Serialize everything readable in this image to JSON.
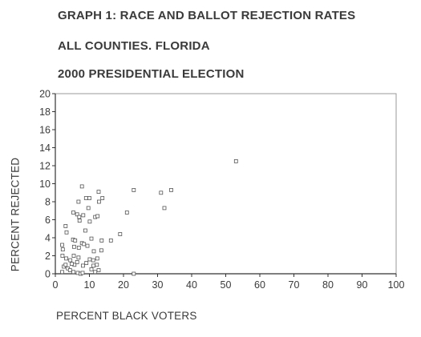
{
  "titles": {
    "line1": "GRAPH 1: RACE AND BALLOT REJECTION RATES",
    "line2": "ALL COUNTIES. FLORIDA",
    "line3": "2000 PRESIDENTIAL ELECTION"
  },
  "chart_data": {
    "type": "scatter",
    "title": "GRAPH 1: RACE AND BALLOT REJECTION RATES ALL COUNTIES. FLORIDA 2000 PRESIDENTIAL ELECTION",
    "xlabel": "PERCENT BLACK VOTERS",
    "ylabel": "PERCENT REJECTED",
    "xlim": [
      0,
      100
    ],
    "ylim": [
      0,
      20
    ],
    "xticks": [
      0,
      10,
      20,
      30,
      40,
      50,
      60,
      70,
      80,
      90,
      100
    ],
    "yticks": [
      0,
      2,
      4,
      6,
      8,
      10,
      12,
      14,
      16,
      18,
      20
    ],
    "grid": false,
    "marker": "hollow-square",
    "series": [
      {
        "points": [
          [
            53,
            12.5
          ],
          [
            23,
            9.3
          ],
          [
            31,
            9.0
          ],
          [
            34,
            9.3
          ],
          [
            32,
            7.3
          ],
          [
            21,
            6.8
          ],
          [
            19,
            4.4
          ],
          [
            23,
            0.0
          ],
          [
            7.8,
            9.7
          ],
          [
            12.7,
            9.1
          ],
          [
            13.8,
            8.4
          ],
          [
            12.8,
            8.0
          ],
          [
            6.8,
            8.0
          ],
          [
            9,
            8.4
          ],
          [
            10,
            8.4
          ],
          [
            9.7,
            7.3
          ],
          [
            5.3,
            6.8
          ],
          [
            6.4,
            6.6
          ],
          [
            7,
            6.3
          ],
          [
            8.2,
            6.5
          ],
          [
            11.7,
            6.3
          ],
          [
            12.4,
            6.4
          ],
          [
            3,
            5.3
          ],
          [
            7.1,
            5.9
          ],
          [
            10.1,
            5.8
          ],
          [
            3.3,
            4.6
          ],
          [
            8.8,
            4.8
          ],
          [
            5.2,
            3.8
          ],
          [
            5.8,
            3.7
          ],
          [
            7.8,
            3.4
          ],
          [
            8.4,
            3.3
          ],
          [
            10.6,
            3.9
          ],
          [
            13.6,
            3.7
          ],
          [
            16.3,
            3.7
          ],
          [
            2,
            3.2
          ],
          [
            2.2,
            2.7
          ],
          [
            5.5,
            3.0
          ],
          [
            6.9,
            2.9
          ],
          [
            11.3,
            2.5
          ],
          [
            13.5,
            2.6
          ],
          [
            2.1,
            2.0
          ],
          [
            3.2,
            1.7
          ],
          [
            5.4,
            2.0
          ],
          [
            6.8,
            1.8
          ],
          [
            10.1,
            1.6
          ],
          [
            11.1,
            1.5
          ],
          [
            12.3,
            1.7
          ],
          [
            4.4,
            1.5
          ],
          [
            5.6,
            1.0
          ],
          [
            6.4,
            1.3
          ],
          [
            8.1,
            0.9
          ],
          [
            9.1,
            1.2
          ],
          [
            11.2,
            0.9
          ],
          [
            12.2,
            1.0
          ],
          [
            2.5,
            0.8
          ],
          [
            3.7,
            0.6
          ],
          [
            4.3,
            0.4
          ],
          [
            5.3,
            0.2
          ],
          [
            6.6,
            0.1
          ],
          [
            7.4,
            0.0
          ],
          [
            8.0,
            0.1
          ],
          [
            10.6,
            0.5
          ],
          [
            12.7,
            0.4
          ],
          [
            2.0,
            0.2
          ],
          [
            4.8,
            1.1
          ],
          [
            3.0,
            1.0
          ],
          [
            9.4,
            3.1
          ],
          [
            11.7,
            0.2
          ]
        ]
      }
    ]
  }
}
